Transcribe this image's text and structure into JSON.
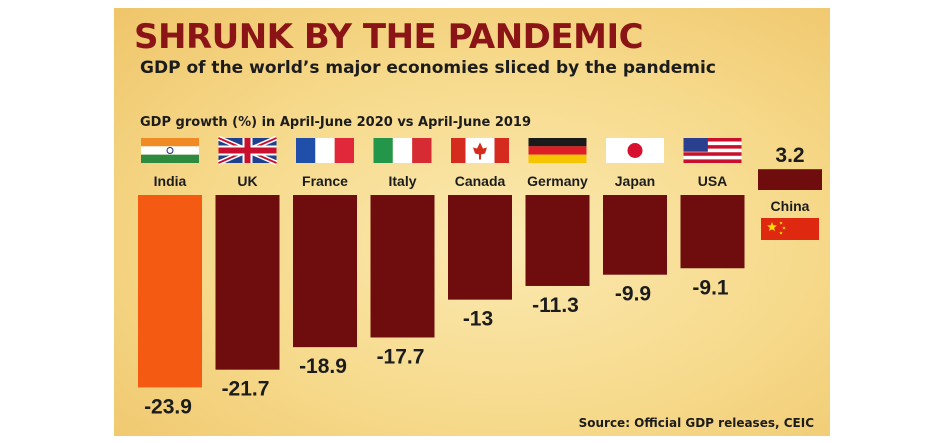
{
  "title": "SHRUNK BY THE PANDEMIC",
  "subtitle": "GDP of the world’s major economies sliced by the pandemic",
  "source": "Source: Official GDP releases, CEIC",
  "colors": {
    "highlight": "#f45a12",
    "bar": "#6e0c0e",
    "title": "#8a1416",
    "background": "#f6d98a"
  },
  "chart_data": {
    "type": "bar",
    "title": "GDP growth (%) in April-June 2020 vs April-June 2019",
    "categories": [
      "India",
      "UK",
      "France",
      "Italy",
      "Canada",
      "Germany",
      "Japan",
      "USA",
      "China"
    ],
    "values": [
      -23.9,
      -21.7,
      -18.9,
      -17.7,
      -13,
      -11.3,
      -9.9,
      -9.1,
      3.2
    ],
    "value_labels": [
      "-23.9",
      "-21.7",
      "-18.9",
      "-17.7",
      "-13",
      "-11.3",
      "-9.9",
      "-9.1",
      "3.2"
    ],
    "highlighted_category": "India",
    "flags": [
      "india-flag",
      "uk-flag",
      "france-flag",
      "italy-flag",
      "canada-flag",
      "germany-flag",
      "japan-flag",
      "usa-flag",
      "china-flag"
    ],
    "grid": false,
    "legend": "none"
  }
}
